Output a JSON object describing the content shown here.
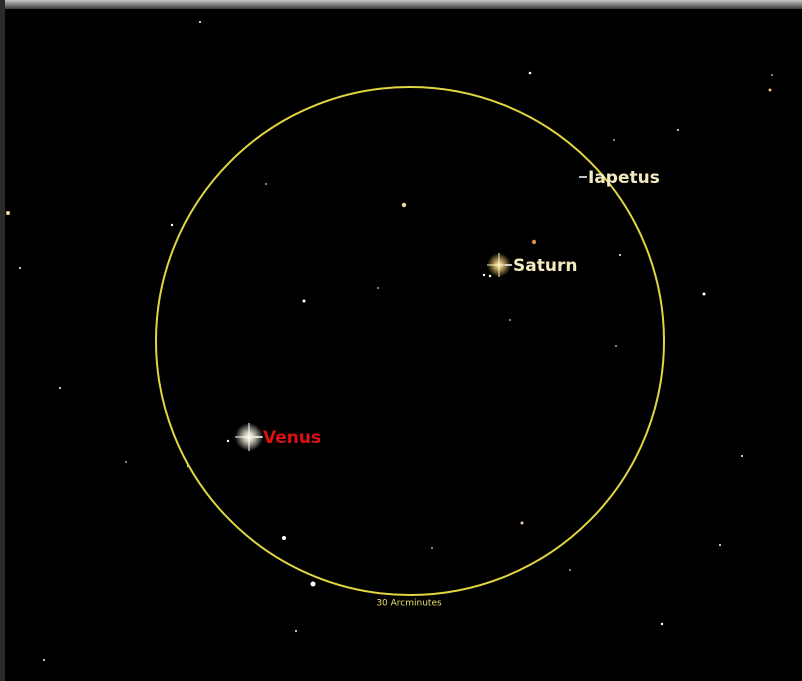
{
  "objects": [
    {
      "label": "Iapetus"
    },
    {
      "label": "Saturn"
    },
    {
      "label": "Venus"
    }
  ],
  "fov_label": "30 Arcminutes"
}
